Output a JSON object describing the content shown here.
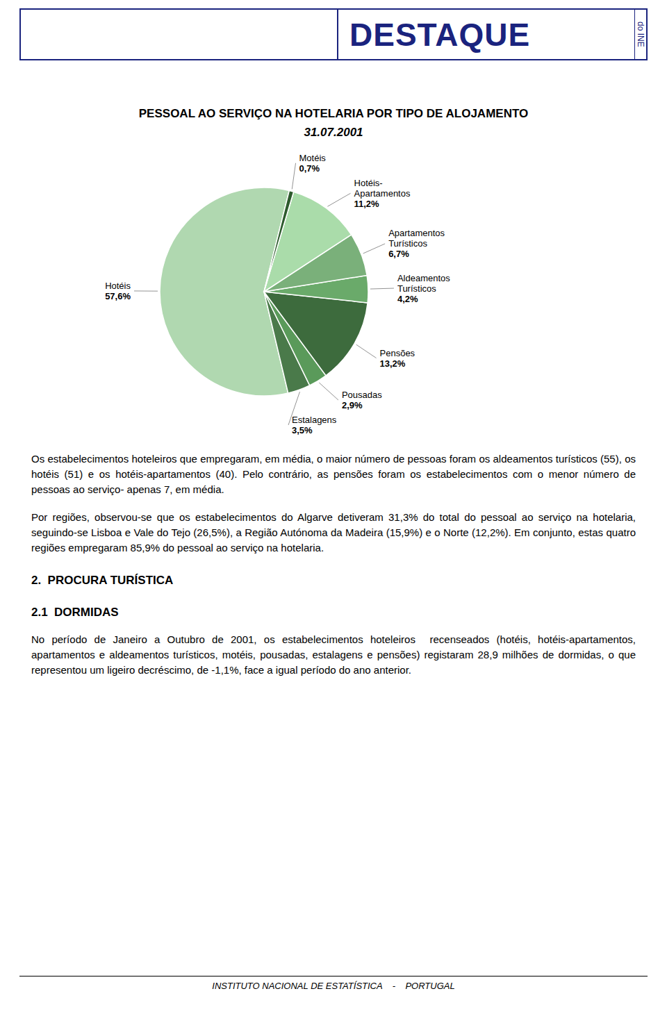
{
  "chart_data": {
    "type": "pie",
    "title": "PESSOAL AO SERVIÇO NA HOTELARIA POR TIPO DE ALOJAMENTO",
    "subtitle": "31.07.2001",
    "categories": [
      "Hotéis",
      "Estalagens",
      "Pousadas",
      "Pensões",
      "Aldeamentos Turísticos",
      "Apartamentos Turísticos",
      "Hotéis-Apartamentos",
      "Motéis"
    ],
    "values": [
      57.6,
      3.5,
      2.9,
      13.2,
      4.2,
      6.7,
      11.2,
      0.7
    ],
    "value_labels": [
      "57,6%",
      "3,5%",
      "2,9%",
      "13,2%",
      "4,2%",
      "6,7%",
      "11,2%",
      "0,7%"
    ],
    "colors": [
      "#b0d8b0",
      "#4a7a4a",
      "#5a9a5a",
      "#3d6b3d",
      "#6aaa6a",
      "#7ab07a",
      "#aadcaa",
      "#2d5a2d"
    ]
  },
  "page": {
    "header": "DESTAQUE",
    "header_note": "do INE",
    "color": "#1a237e",
    "body": [
      {
        "text": "Os estabelecimentos hoteleiros que empregaram, em média, o maior número de pessoas foram os aldeamentos turísticos (55), os hotéis (51) e os hotéis-apartamentos (40). Pelo contrário, as pensões foram os estabelecimentos com o menor número de pessoas ao serviço- apenas 7, em média."
      },
      {
        "text": "Por regiões, observou-se que os estabelecimentos do Algarve detiveram 31,3% do total do pessoal ao serviço na hotelaria, seguindo-se Lisboa e Vale do Tejo (26,5%), a Região Autónoma da Madeira (15,9%) e o Norte (12,2%). Em conjunto, estas quatro regiões empregaram 85,9% do pessoal ao serviço na hotelaria."
      },
      {
        "heading": "2.  PROCURA TURÍSTICA"
      },
      {
        "heading": "2.1  DORMIDAS"
      },
      {
        "text": "No período de Janeiro a Outubro de 2001, os estabelecimentos hoteleiros  recenseados (hotéis, hotéis-apartamentos, apartamentos e aldeamentos turísticos, motéis, pousadas, estalagens e pensões) registaram 28,9 milhões de dormidas, o que representou um ligeiro decréscimo, de -1,1%, face a igual período do ano anterior."
      }
    ],
    "footer": "INSTITUTO NACIONAL DE ESTATÍSTICA    -    PORTUGAL"
  }
}
